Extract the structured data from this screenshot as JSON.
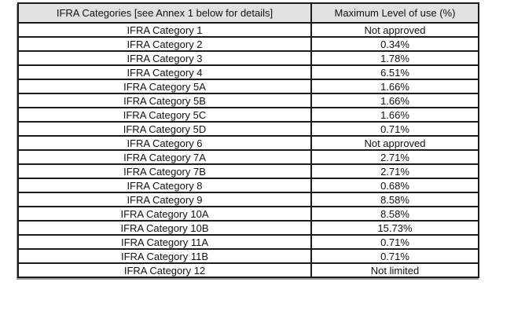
{
  "table": {
    "border_color": "#1c1c1c",
    "header_bg": "#e2e2e2",
    "columns": [
      {
        "label": "IFRA Categories [see Annex 1 below for details]"
      },
      {
        "label": "Maximum Level of use (%)"
      }
    ],
    "rows": [
      {
        "category": "IFRA Category 1",
        "max_level": "Not approved"
      },
      {
        "category": "IFRA Category 2",
        "max_level": "0.34%"
      },
      {
        "category": "IFRA Category 3",
        "max_level": "1.78%"
      },
      {
        "category": "IFRA Category 4",
        "max_level": "6.51%"
      },
      {
        "category": "IFRA Category 5A",
        "max_level": "1.66%"
      },
      {
        "category": "IFRA Category 5B",
        "max_level": "1.66%"
      },
      {
        "category": "IFRA Category 5C",
        "max_level": "1.66%"
      },
      {
        "category": "IFRA Category 5D",
        "max_level": "0.71%"
      },
      {
        "category": "IFRA Category 6",
        "max_level": "Not approved"
      },
      {
        "category": "IFRA Category 7A",
        "max_level": "2.71%"
      },
      {
        "category": "IFRA Category 7B",
        "max_level": "2.71%"
      },
      {
        "category": "IFRA Category 8",
        "max_level": "0.68%"
      },
      {
        "category": "IFRA Category 9",
        "max_level": "8.58%"
      },
      {
        "category": "IFRA Category 10A",
        "max_level": "8.58%"
      },
      {
        "category": "IFRA Category 10B",
        "max_level": "15.73%"
      },
      {
        "category": "IFRA Category 11A",
        "max_level": "0.71%"
      },
      {
        "category": "IFRA Category 11B",
        "max_level": "0.71%"
      },
      {
        "category": "IFRA Category 12",
        "max_level": "Not limited"
      }
    ]
  }
}
